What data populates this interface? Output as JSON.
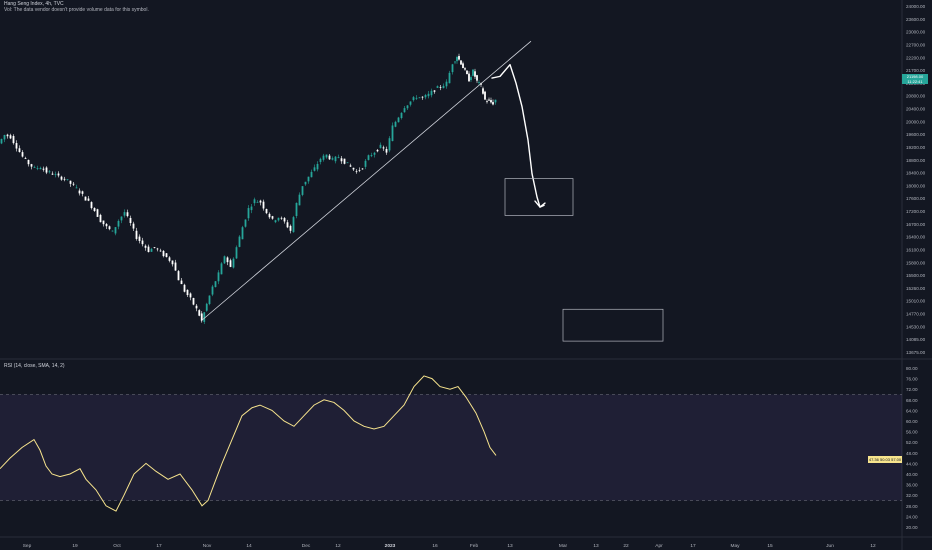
{
  "header": {
    "title": "Hang Seng Index, 4h, TVC",
    "vol_note": "Vol: The data vendor doesn't provide volume data for this symbol."
  },
  "price_tag": {
    "value": "21198.00",
    "sub": "11:22:41"
  },
  "rsi": {
    "label": "RSI (14, close, SMA, 14, 2)",
    "tag": "47.36 50.03 57.00"
  },
  "chart_data": {
    "type": "candlestick",
    "title": "Hang Seng Index, 4h, TVC",
    "price_axis": {
      "ticks": [
        "24000.00",
        "23600.00",
        "23000.00",
        "22700.00",
        "22200.00",
        "21700.00",
        "21200.00",
        "20800.00",
        "20400.00",
        "20000.00",
        "19600.00",
        "19200.00",
        "18800.00",
        "18400.00",
        "18000.00",
        "17600.00",
        "17200.00",
        "16700.00",
        "16400.00",
        "16100.00",
        "15800.00",
        "15500.00",
        "15260.00",
        "15010.00",
        "14770.00",
        "14530.00",
        "14085.00",
        "13675.00"
      ],
      "ylim": [
        13675,
        24000
      ]
    },
    "time_axis": {
      "ticks": [
        "Sep",
        "19",
        "Oct",
        "17",
        "Nov",
        "14",
        "Dec",
        "12",
        "2023",
        "16",
        "Feb",
        "13",
        "Mar",
        "13",
        "22",
        "Apr",
        "17",
        "May",
        "15",
        "Jun",
        "12"
      ]
    },
    "price_series": [
      [
        0,
        19900
      ],
      [
        6,
        20150
      ],
      [
        12,
        20100
      ],
      [
        18,
        19800
      ],
      [
        24,
        19500
      ],
      [
        30,
        19300
      ],
      [
        36,
        19150
      ],
      [
        42,
        19200
      ],
      [
        48,
        19050
      ],
      [
        54,
        19000
      ],
      [
        60,
        18900
      ],
      [
        66,
        18850
      ],
      [
        72,
        18700
      ],
      [
        78,
        18550
      ],
      [
        84,
        18350
      ],
      [
        90,
        18150
      ],
      [
        96,
        17900
      ],
      [
        102,
        17600
      ],
      [
        108,
        17400
      ],
      [
        114,
        17250
      ],
      [
        120,
        17600
      ],
      [
        126,
        17850
      ],
      [
        132,
        17500
      ],
      [
        138,
        17100
      ],
      [
        144,
        16900
      ],
      [
        150,
        16700
      ],
      [
        156,
        16800
      ],
      [
        162,
        16650
      ],
      [
        168,
        16500
      ],
      [
        174,
        16350
      ],
      [
        180,
        15850
      ],
      [
        186,
        15500
      ],
      [
        192,
        15250
      ],
      [
        198,
        14950
      ],
      [
        203,
        14600
      ],
      [
        208,
        15100
      ],
      [
        214,
        15600
      ],
      [
        220,
        16000
      ],
      [
        226,
        16550
      ],
      [
        232,
        16200
      ],
      [
        238,
        16800
      ],
      [
        244,
        17400
      ],
      [
        250,
        17950
      ],
      [
        256,
        18200
      ],
      [
        262,
        18150
      ],
      [
        268,
        17850
      ],
      [
        274,
        17600
      ],
      [
        280,
        17700
      ],
      [
        286,
        17550
      ],
      [
        292,
        17300
      ],
      [
        298,
        18100
      ],
      [
        304,
        18650
      ],
      [
        310,
        18900
      ],
      [
        316,
        19150
      ],
      [
        322,
        19450
      ],
      [
        328,
        19550
      ],
      [
        334,
        19400
      ],
      [
        340,
        19500
      ],
      [
        346,
        19350
      ],
      [
        352,
        19200
      ],
      [
        358,
        19050
      ],
      [
        364,
        19200
      ],
      [
        370,
        19500
      ],
      [
        376,
        19650
      ],
      [
        382,
        19800
      ],
      [
        388,
        19650
      ],
      [
        394,
        20400
      ],
      [
        400,
        20700
      ],
      [
        406,
        21000
      ],
      [
        412,
        21150
      ],
      [
        418,
        21300
      ],
      [
        424,
        21250
      ],
      [
        430,
        21350
      ],
      [
        436,
        21500
      ],
      [
        442,
        21600
      ],
      [
        448,
        21700
      ],
      [
        454,
        22300
      ],
      [
        458,
        22500
      ],
      [
        462,
        22300
      ],
      [
        466,
        22050
      ],
      [
        470,
        21800
      ],
      [
        474,
        22050
      ],
      [
        478,
        21750
      ],
      [
        482,
        21600
      ],
      [
        486,
        21200
      ],
      [
        490,
        21150
      ],
      [
        494,
        21100
      ],
      [
        497,
        21198
      ]
    ],
    "trendline": {
      "from": {
        "t": 201,
        "v": 14600
      },
      "to": {
        "t": 531,
        "v": 22950
      }
    },
    "annotations": [
      {
        "type": "arrow",
        "points": [
          [
            492,
            21850
          ],
          [
            500,
            21900
          ],
          [
            510,
            22250
          ],
          [
            516,
            21700
          ],
          [
            522,
            21000
          ],
          [
            528,
            20000
          ],
          [
            532,
            19000
          ],
          [
            537,
            18300
          ],
          [
            540,
            18000
          ],
          [
            544,
            18050
          ]
        ]
      },
      {
        "type": "rectangle",
        "from": {
          "t": 505,
          "v": 18850
        },
        "to": {
          "t": 573,
          "v": 17750
        }
      },
      {
        "type": "rectangle",
        "from": {
          "t": 563,
          "v": 14950
        },
        "to": {
          "t": 663,
          "v": 14000
        }
      }
    ],
    "rsi": {
      "ylim": [
        20,
        80
      ],
      "ticks": [
        "80.00",
        "76.00",
        "72.00",
        "68.00",
        "64.00",
        "60.00",
        "56.00",
        "52.00",
        "48.00",
        "44.00",
        "40.00",
        "36.00",
        "32.00",
        "28.00",
        "24.00",
        "20.00"
      ],
      "band": [
        30,
        70
      ],
      "values": [
        [
          0,
          42
        ],
        [
          10,
          46
        ],
        [
          22,
          50
        ],
        [
          34,
          53
        ],
        [
          40,
          49
        ],
        [
          46,
          43
        ],
        [
          52,
          40
        ],
        [
          60,
          39
        ],
        [
          70,
          40
        ],
        [
          80,
          42
        ],
        [
          86,
          38
        ],
        [
          96,
          34
        ],
        [
          106,
          28
        ],
        [
          116,
          26
        ],
        [
          124,
          32
        ],
        [
          134,
          40
        ],
        [
          146,
          44
        ],
        [
          156,
          41
        ],
        [
          168,
          38
        ],
        [
          180,
          40
        ],
        [
          192,
          34
        ],
        [
          202,
          28
        ],
        [
          208,
          30
        ],
        [
          214,
          36
        ],
        [
          222,
          44
        ],
        [
          232,
          53
        ],
        [
          242,
          62
        ],
        [
          252,
          65
        ],
        [
          260,
          66
        ],
        [
          272,
          64
        ],
        [
          284,
          60
        ],
        [
          294,
          58
        ],
        [
          304,
          62
        ],
        [
          314,
          66
        ],
        [
          324,
          68
        ],
        [
          334,
          67
        ],
        [
          344,
          64
        ],
        [
          354,
          60
        ],
        [
          364,
          58
        ],
        [
          374,
          57
        ],
        [
          384,
          58
        ],
        [
          394,
          62
        ],
        [
          404,
          66
        ],
        [
          414,
          73
        ],
        [
          424,
          77
        ],
        [
          432,
          76
        ],
        [
          440,
          73
        ],
        [
          450,
          72
        ],
        [
          458,
          73
        ],
        [
          466,
          69
        ],
        [
          476,
          63
        ],
        [
          484,
          56
        ],
        [
          490,
          50
        ],
        [
          496,
          47
        ]
      ]
    }
  }
}
